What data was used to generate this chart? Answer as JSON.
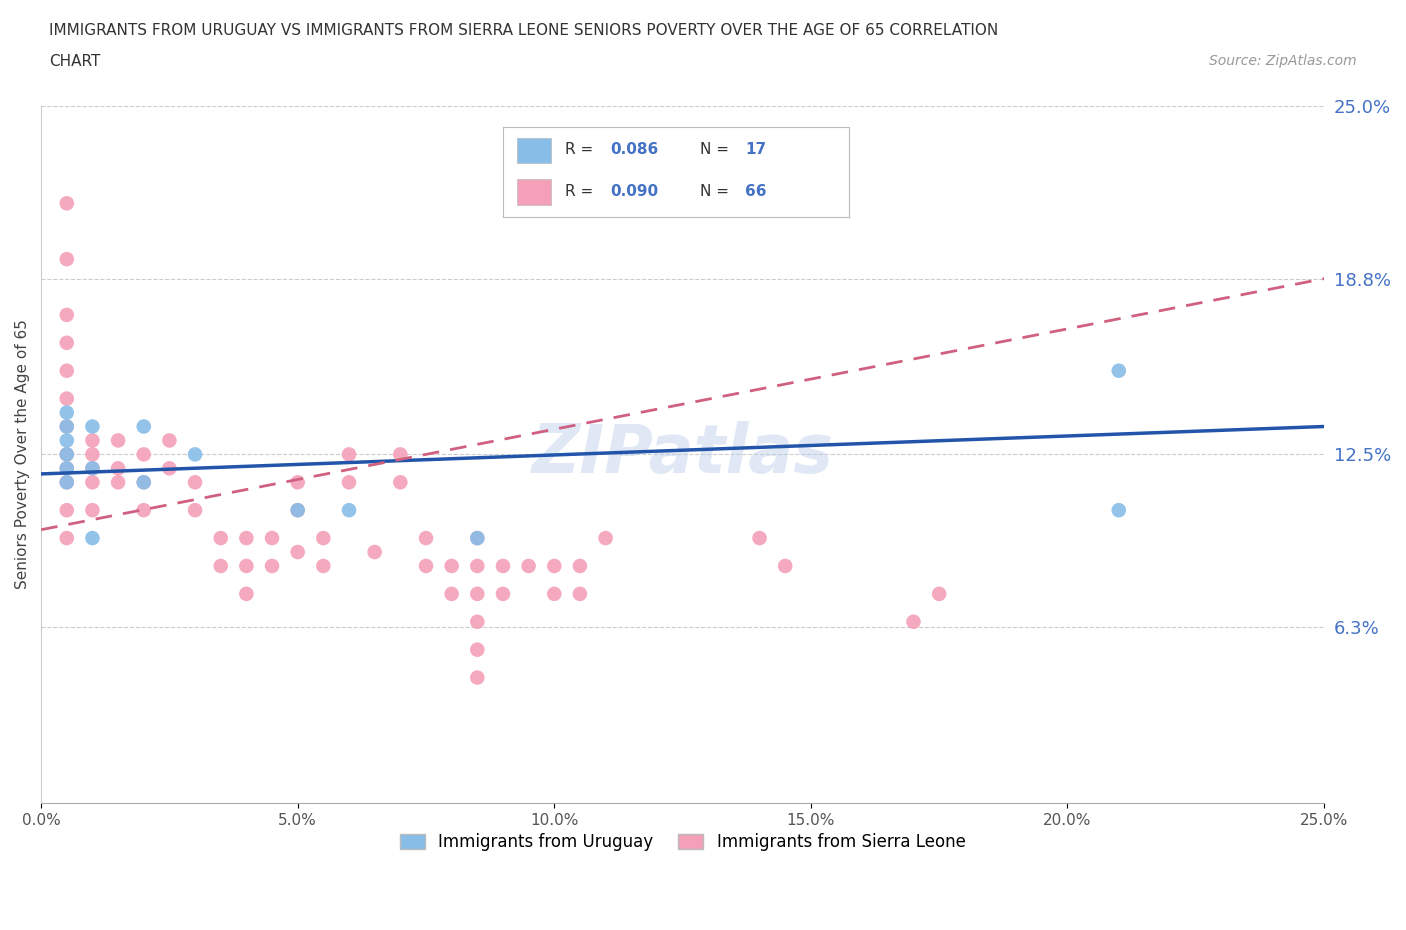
{
  "title_line1": "IMMIGRANTS FROM URUGUAY VS IMMIGRANTS FROM SIERRA LEONE SENIORS POVERTY OVER THE AGE OF 65 CORRELATION",
  "title_line2": "CHART",
  "source_text": "Source: ZipAtlas.com",
  "ylabel": "Seniors Poverty Over the Age of 65",
  "xlim": [
    0,
    0.25
  ],
  "ylim": [
    0,
    0.25
  ],
  "xticks": [
    0.0,
    0.05,
    0.1,
    0.15,
    0.2,
    0.25
  ],
  "xtick_labels": [
    "0.0%",
    "5.0%",
    "10.0%",
    "15.0%",
    "20.0%",
    "25.0%"
  ],
  "ytick_labels_right": [
    "6.3%",
    "12.5%",
    "18.8%",
    "25.0%"
  ],
  "ytick_vals_right": [
    0.063,
    0.125,
    0.188,
    0.25
  ],
  "color_uruguay": "#88bde8",
  "color_sierra": "#f4a0b8",
  "color_trend_uruguay": "#2255aa",
  "color_trend_sierra": "#d06080",
  "watermark": "ZIPatlas",
  "uruguay_x": [
    0.005,
    0.005,
    0.005,
    0.005,
    0.005,
    0.005,
    0.01,
    0.01,
    0.01,
    0.02,
    0.02,
    0.03,
    0.05,
    0.06,
    0.085,
    0.21,
    0.21
  ],
  "uruguay_y": [
    0.13,
    0.135,
    0.14,
    0.125,
    0.12,
    0.115,
    0.135,
    0.12,
    0.095,
    0.135,
    0.115,
    0.125,
    0.105,
    0.105,
    0.095,
    0.155,
    0.105
  ],
  "sierra_x": [
    0.005,
    0.005,
    0.005,
    0.005,
    0.005,
    0.005,
    0.005,
    0.005,
    0.005,
    0.005,
    0.005,
    0.005,
    0.01,
    0.01,
    0.01,
    0.01,
    0.01,
    0.015,
    0.015,
    0.015,
    0.02,
    0.02,
    0.02,
    0.025,
    0.025,
    0.03,
    0.03,
    0.035,
    0.035,
    0.04,
    0.04,
    0.04,
    0.045,
    0.045,
    0.05,
    0.05,
    0.05,
    0.055,
    0.055,
    0.06,
    0.06,
    0.065,
    0.07,
    0.07,
    0.075,
    0.075,
    0.08,
    0.08,
    0.085,
    0.085,
    0.085,
    0.085,
    0.085,
    0.085,
    0.09,
    0.09,
    0.095,
    0.1,
    0.1,
    0.105,
    0.105,
    0.11,
    0.14,
    0.145,
    0.17,
    0.175
  ],
  "sierra_y": [
    0.215,
    0.195,
    0.175,
    0.165,
    0.155,
    0.145,
    0.135,
    0.125,
    0.12,
    0.115,
    0.105,
    0.095,
    0.13,
    0.125,
    0.12,
    0.115,
    0.105,
    0.13,
    0.12,
    0.115,
    0.125,
    0.115,
    0.105,
    0.13,
    0.12,
    0.115,
    0.105,
    0.095,
    0.085,
    0.095,
    0.085,
    0.075,
    0.095,
    0.085,
    0.09,
    0.105,
    0.115,
    0.095,
    0.085,
    0.115,
    0.125,
    0.09,
    0.115,
    0.125,
    0.095,
    0.085,
    0.085,
    0.075,
    0.085,
    0.075,
    0.065,
    0.095,
    0.055,
    0.045,
    0.085,
    0.075,
    0.085,
    0.085,
    0.075,
    0.085,
    0.075,
    0.095,
    0.095,
    0.085,
    0.065,
    0.075
  ],
  "trend_uruguay_x0": 0.0,
  "trend_uruguay_x1": 0.25,
  "trend_uruguay_y0": 0.118,
  "trend_uruguay_y1": 0.135,
  "trend_sierra_x0": 0.0,
  "trend_sierra_x1": 0.25,
  "trend_sierra_y0": 0.098,
  "trend_sierra_y1": 0.188
}
